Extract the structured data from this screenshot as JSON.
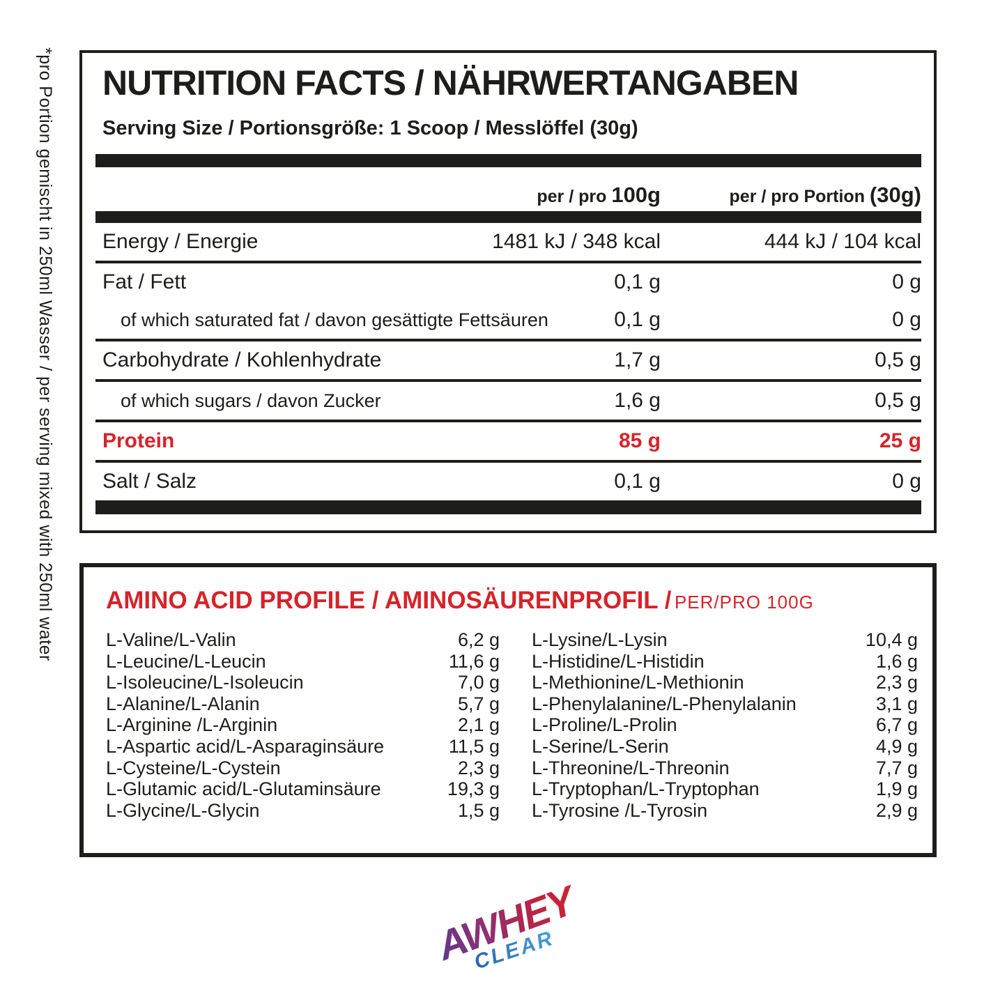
{
  "side_note": "*pro Portion gemischt in 250ml Wasser / per serving mixed with 250ml water",
  "nutrition": {
    "title": "NUTRITION FACTS / NÄHRWERTANGABEN",
    "serving": "Serving Size / Portionsgröße: 1 Scoop / Messlöffel (30g)",
    "col_headers": [
      {
        "prefix": "per / pro ",
        "em": "100g"
      },
      {
        "prefix": "per / pro Portion ",
        "em": "(30g)"
      }
    ],
    "rows": [
      {
        "label": "Energy / Energie",
        "per100": "1481 kJ / 348 kcal",
        "portion": "444 kJ / 104 kcal",
        "sub": false,
        "highlight": false,
        "divider_above": false
      },
      {
        "label": "Fat / Fett",
        "per100": "0,1 g",
        "portion": "0 g",
        "sub": false,
        "highlight": false,
        "divider_above": true
      },
      {
        "label": "of which saturated fat / davon gesättigte Fettsäuren",
        "per100": "0,1 g",
        "portion": "0 g",
        "sub": true,
        "highlight": false,
        "divider_above": false
      },
      {
        "label": "Carbohydrate / Kohlenhydrate",
        "per100": "1,7 g",
        "portion": "0,5 g",
        "sub": false,
        "highlight": false,
        "divider_above": true
      },
      {
        "label": "of which sugars / davon Zucker",
        "per100": "1,6 g",
        "portion": "0,5 g",
        "sub": true,
        "highlight": false,
        "divider_above": true
      },
      {
        "label": "Protein",
        "per100": "85 g",
        "portion": "25 g",
        "sub": false,
        "highlight": true,
        "divider_above": true
      },
      {
        "label": "Salt / Salz",
        "per100": "0,1 g",
        "portion": "0 g",
        "sub": false,
        "highlight": false,
        "divider_above": true
      }
    ]
  },
  "amino": {
    "title_bold": "AMINO ACID PROFILE / AMINOSÄURENPROFIL /",
    "title_light": "PER/PRO 100G",
    "left": [
      {
        "name": "L-Valine/L-Valin",
        "value": "6,2 g"
      },
      {
        "name": "L-Leucine/L-Leucin",
        "value": "11,6 g"
      },
      {
        "name": "L-Isoleucine/L-Isoleucin",
        "value": "7,0 g"
      },
      {
        "name": "L-Alanine/L-Alanin",
        "value": "5,7 g"
      },
      {
        "name": "L-Arginine  /L-Arginin",
        "value": "2,1 g"
      },
      {
        "name": "L-Aspartic acid/L-Asparaginsäure",
        "value": "11,5 g"
      },
      {
        "name": "L-Cysteine/L-Cystein",
        "value": "2,3 g"
      },
      {
        "name": "L-Glutamic acid/L-Glutaminsäure",
        "value": "19,3 g"
      },
      {
        "name": "L-Glycine/L-Glycin",
        "value": "1,5 g"
      }
    ],
    "right": [
      {
        "name": "L-Lysine/L-Lysin",
        "value": "10,4 g"
      },
      {
        "name": "L-Histidine/L-Histidin",
        "value": "1,6 g"
      },
      {
        "name": "L-Methionine/L-Methionin",
        "value": "2,3 g"
      },
      {
        "name": "L-Phenylalanine/L-Phenylalanin",
        "value": "3,1 g"
      },
      {
        "name": "L-Proline/L-Prolin",
        "value": "6,7 g"
      },
      {
        "name": "L-Serine/L-Serin",
        "value": "4,9 g"
      },
      {
        "name": "L-Threonine/L-Threonin",
        "value": "7,7 g"
      },
      {
        "name": "L-Tryptophan/L-Tryptophan",
        "value": "1,9 g"
      },
      {
        "name": "L-Tyrosine  /L-Tyrosin",
        "value": "2,9 g"
      }
    ]
  },
  "logo": {
    "main": "AWHEY",
    "sub": "CLEAR"
  },
  "colors": {
    "text_black": "#1d1d1b",
    "accent_red": "#d6232a",
    "logo_purple": "#4e3d99",
    "logo_red": "#d6202c",
    "logo_blue_dark": "#2b5cad",
    "logo_blue_light": "#45a6e0"
  }
}
